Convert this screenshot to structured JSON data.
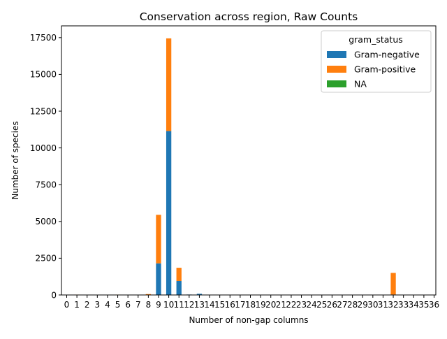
{
  "chart_data": {
    "type": "bar",
    "stacked": true,
    "title": "Conservation across region, Raw Counts",
    "xlabel": "Number of non-gap columns",
    "ylabel": "Number of species",
    "ylim": [
      0,
      18300
    ],
    "yticks": [
      0,
      2500,
      5000,
      7500,
      10000,
      12500,
      15000,
      17500
    ],
    "ytick_labels": [
      "0",
      "2500",
      "5000",
      "7500",
      "10000",
      "12500",
      "15000",
      "17500"
    ],
    "categories": [
      "0",
      "1",
      "2",
      "3",
      "4",
      "5",
      "6",
      "7",
      "8",
      "9",
      "10",
      "11",
      "12",
      "13",
      "14",
      "15",
      "16",
      "17",
      "18",
      "19",
      "20",
      "21",
      "22",
      "23",
      "24",
      "25",
      "26",
      "27",
      "28",
      "29",
      "30",
      "31",
      "32",
      "33",
      "34",
      "35",
      "36"
    ],
    "grid": false,
    "legend": {
      "title": "gram_status",
      "placement": "top-right"
    },
    "series": [
      {
        "name": "Gram-negative",
        "color": "#1f77b4",
        "values": [
          5,
          5,
          5,
          0,
          0,
          5,
          5,
          0,
          20,
          2150,
          11150,
          950,
          30,
          80,
          0,
          0,
          0,
          0,
          0,
          0,
          0,
          0,
          0,
          0,
          0,
          0,
          0,
          0,
          0,
          0,
          0,
          0,
          30,
          0,
          0,
          0,
          0
        ]
      },
      {
        "name": "Gram-positive",
        "color": "#ff7f0e",
        "values": [
          10,
          20,
          15,
          0,
          0,
          20,
          15,
          0,
          40,
          3300,
          6300,
          900,
          0,
          0,
          0,
          0,
          0,
          0,
          0,
          0,
          0,
          0,
          0,
          0,
          0,
          0,
          0,
          0,
          0,
          0,
          0,
          0,
          1470,
          0,
          0,
          0,
          0
        ]
      },
      {
        "name": "NA",
        "color": "#2ca02c",
        "values": [
          0,
          0,
          0,
          0,
          0,
          0,
          0,
          0,
          0,
          0,
          0,
          0,
          0,
          0,
          0,
          0,
          0,
          0,
          0,
          0,
          0,
          0,
          0,
          0,
          0,
          0,
          0,
          0,
          0,
          0,
          0,
          0,
          0,
          0,
          0,
          0,
          0
        ]
      }
    ]
  }
}
